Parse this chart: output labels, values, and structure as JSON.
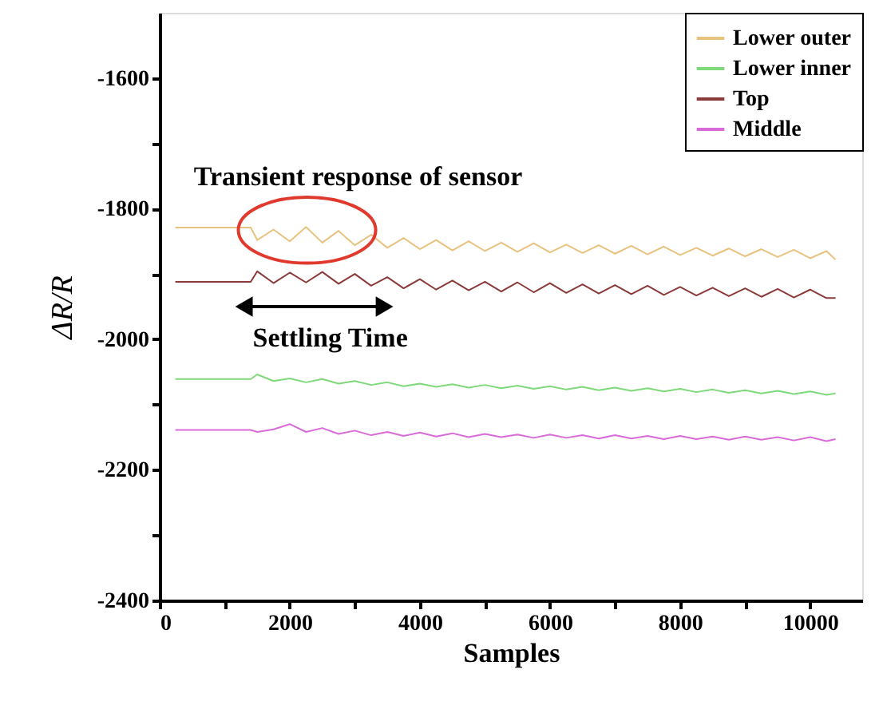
{
  "chart_data": {
    "type": "line",
    "xlabel": "Samples",
    "ylabel": "ΔR/R",
    "x": [
      240,
      1400,
      1500,
      1750,
      2000,
      2250,
      2500,
      2750,
      3000,
      3250,
      3500,
      3750,
      4000,
      4250,
      4500,
      4750,
      5000,
      5250,
      5500,
      5750,
      6000,
      6250,
      6500,
      6750,
      7000,
      7250,
      7500,
      7750,
      8000,
      8250,
      8500,
      8750,
      9000,
      9250,
      9500,
      9750,
      10000,
      10250,
      10390
    ],
    "series": [
      {
        "name": "Lower outer",
        "color": "#e8c27f",
        "values": [
          -1829,
          -1829,
          -1848,
          -1832,
          -1850,
          -1828,
          -1852,
          -1834,
          -1856,
          -1840,
          -1860,
          -1845,
          -1862,
          -1848,
          -1864,
          -1850,
          -1865,
          -1852,
          -1866,
          -1853,
          -1867,
          -1855,
          -1868,
          -1856,
          -1869,
          -1857,
          -1870,
          -1858,
          -1871,
          -1860,
          -1872,
          -1861,
          -1873,
          -1862,
          -1874,
          -1863,
          -1876,
          -1865,
          -1878
        ]
      },
      {
        "name": "Lower inner",
        "color": "#7fd97a",
        "values": [
          -2061,
          -2061,
          -2054,
          -2064,
          -2060,
          -2066,
          -2061,
          -2068,
          -2064,
          -2070,
          -2066,
          -2072,
          -2068,
          -2073,
          -2069,
          -2074,
          -2070,
          -2075,
          -2071,
          -2076,
          -2072,
          -2077,
          -2073,
          -2078,
          -2074,
          -2079,
          -2075,
          -2080,
          -2076,
          -2081,
          -2077,
          -2082,
          -2078,
          -2083,
          -2079,
          -2084,
          -2080,
          -2085,
          -2083
        ]
      },
      {
        "name": "Top",
        "color": "#8b3a3a",
        "values": [
          -1912,
          -1912,
          -1896,
          -1914,
          -1898,
          -1913,
          -1897,
          -1915,
          -1900,
          -1918,
          -1905,
          -1922,
          -1908,
          -1924,
          -1910,
          -1925,
          -1912,
          -1927,
          -1913,
          -1928,
          -1914,
          -1929,
          -1916,
          -1930,
          -1917,
          -1931,
          -1918,
          -1932,
          -1920,
          -1933,
          -1921,
          -1934,
          -1922,
          -1935,
          -1923,
          -1936,
          -1924,
          -1937,
          -1937
        ]
      },
      {
        "name": "Middle",
        "color": "#d86bd8",
        "values": [
          -2139,
          -2139,
          -2142,
          -2138,
          -2130,
          -2142,
          -2136,
          -2145,
          -2140,
          -2147,
          -2142,
          -2148,
          -2143,
          -2149,
          -2144,
          -2150,
          -2145,
          -2150,
          -2146,
          -2151,
          -2146,
          -2151,
          -2147,
          -2152,
          -2147,
          -2152,
          -2148,
          -2153,
          -2148,
          -2153,
          -2149,
          -2154,
          -2149,
          -2154,
          -2150,
          -2155,
          -2150,
          -2156,
          -2153
        ]
      }
    ],
    "xlim": [
      0,
      10800
    ],
    "ylim": [
      -2400,
      -1500
    ],
    "xticks": [
      0,
      {
        "value": 1000,
        "label": null
      },
      2000,
      {
        "value": 3000,
        "label": null
      },
      4000,
      {
        "value": 5000,
        "label": null
      },
      6000,
      {
        "value": 7000,
        "label": null
      },
      8000,
      {
        "value": 9000,
        "label": null
      },
      10000
    ],
    "yticks": [
      -2400,
      {
        "value": -2300,
        "label": null
      },
      -2200,
      {
        "value": -2100,
        "label": null
      },
      -2000,
      {
        "value": -1900,
        "label": null
      },
      -1800,
      {
        "value": -1700,
        "label": null
      },
      -1600
    ],
    "annotations": [
      {
        "text": "Transient response of sensor",
        "x": 2265,
        "y": -1833
      },
      "Settling Time"
    ],
    "legend": "top right",
    "grid": false,
    "marker": "none",
    "line_style": "solid"
  }
}
